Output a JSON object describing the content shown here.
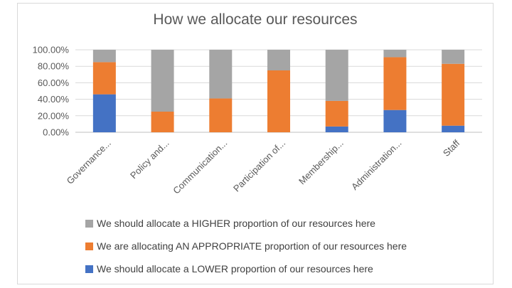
{
  "chart_data": {
    "type": "bar",
    "stacked": true,
    "title": "How we allocate our resources",
    "categories": [
      "Governance...",
      "Policy and...",
      "Communication...",
      "Participation of...",
      "Membership...",
      "Administration...",
      "Staff"
    ],
    "series": [
      {
        "name": "We should allocate a LOWER proportion of our resources here",
        "color": "#4472c4",
        "values": [
          0.46,
          0,
          0,
          0,
          0.07,
          0.27,
          0.08
        ]
      },
      {
        "name": "We are allocating AN APPROPRIATE proportion of our resources here",
        "color": "#ed7d31",
        "values": [
          0.39,
          0.25,
          0.41,
          0.75,
          0.31,
          0.64,
          0.75
        ]
      },
      {
        "name": "We should allocate a HIGHER proportion of our resources here",
        "color": "#a5a5a5",
        "values": [
          0.15,
          0.75,
          0.59,
          0.25,
          0.62,
          0.09,
          0.17
        ]
      }
    ],
    "yticks": [
      "0.00%",
      "20.00%",
      "40.00%",
      "60.00%",
      "80.00%",
      "100.00%"
    ],
    "ylim": [
      0,
      1
    ],
    "grid": true,
    "legend_position": "bottom",
    "legend_order": [
      2,
      1,
      0
    ]
  }
}
